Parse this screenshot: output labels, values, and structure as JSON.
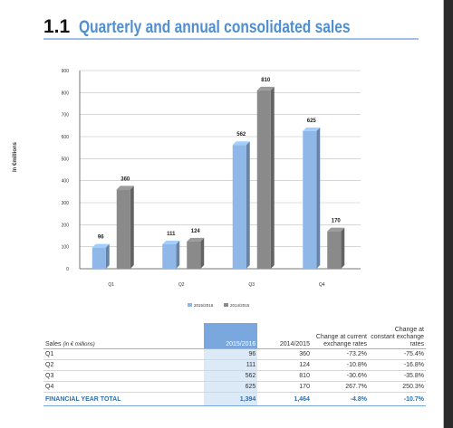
{
  "heading": {
    "number": "1.1",
    "title": "Quarterly and annual consolidated sales"
  },
  "chart_data": {
    "type": "bar",
    "ylabel": "In €millions",
    "ylim": [
      0,
      900
    ],
    "yticks": [
      0,
      100,
      200,
      300,
      400,
      500,
      600,
      700,
      800,
      900
    ],
    "categories": [
      "Q1",
      "Q2",
      "Q3",
      "Q4"
    ],
    "series": [
      {
        "name": "2015/2016",
        "values": [
          96,
          111,
          562,
          625
        ],
        "color": "#8fb8e8"
      },
      {
        "name": "2014/2015",
        "values": [
          360,
          124,
          810,
          170
        ],
        "color": "#8a8a8a"
      }
    ],
    "legend_position": "bottom-center",
    "grid": true
  },
  "table": {
    "label_header": "Sales",
    "label_unit": "(in € millions)",
    "headers": [
      "2015/2016",
      "2014/2015",
      "Change at current exchange rates",
      "Change at constant exchange rates"
    ],
    "rows": [
      [
        "Q1",
        "96",
        "360",
        "-73.2%",
        "-75.4%"
      ],
      [
        "Q2",
        "111",
        "124",
        "-10.8%",
        "-16.8%"
      ],
      [
        "Q3",
        "562",
        "810",
        "-30.6%",
        "-35.8%"
      ],
      [
        "Q4",
        "625",
        "170",
        "267.7%",
        "250.3%"
      ]
    ],
    "total": [
      "FINANCIAL YEAR TOTAL",
      "1,394",
      "1,464",
      "-4.8%",
      "-10.7%"
    ]
  }
}
